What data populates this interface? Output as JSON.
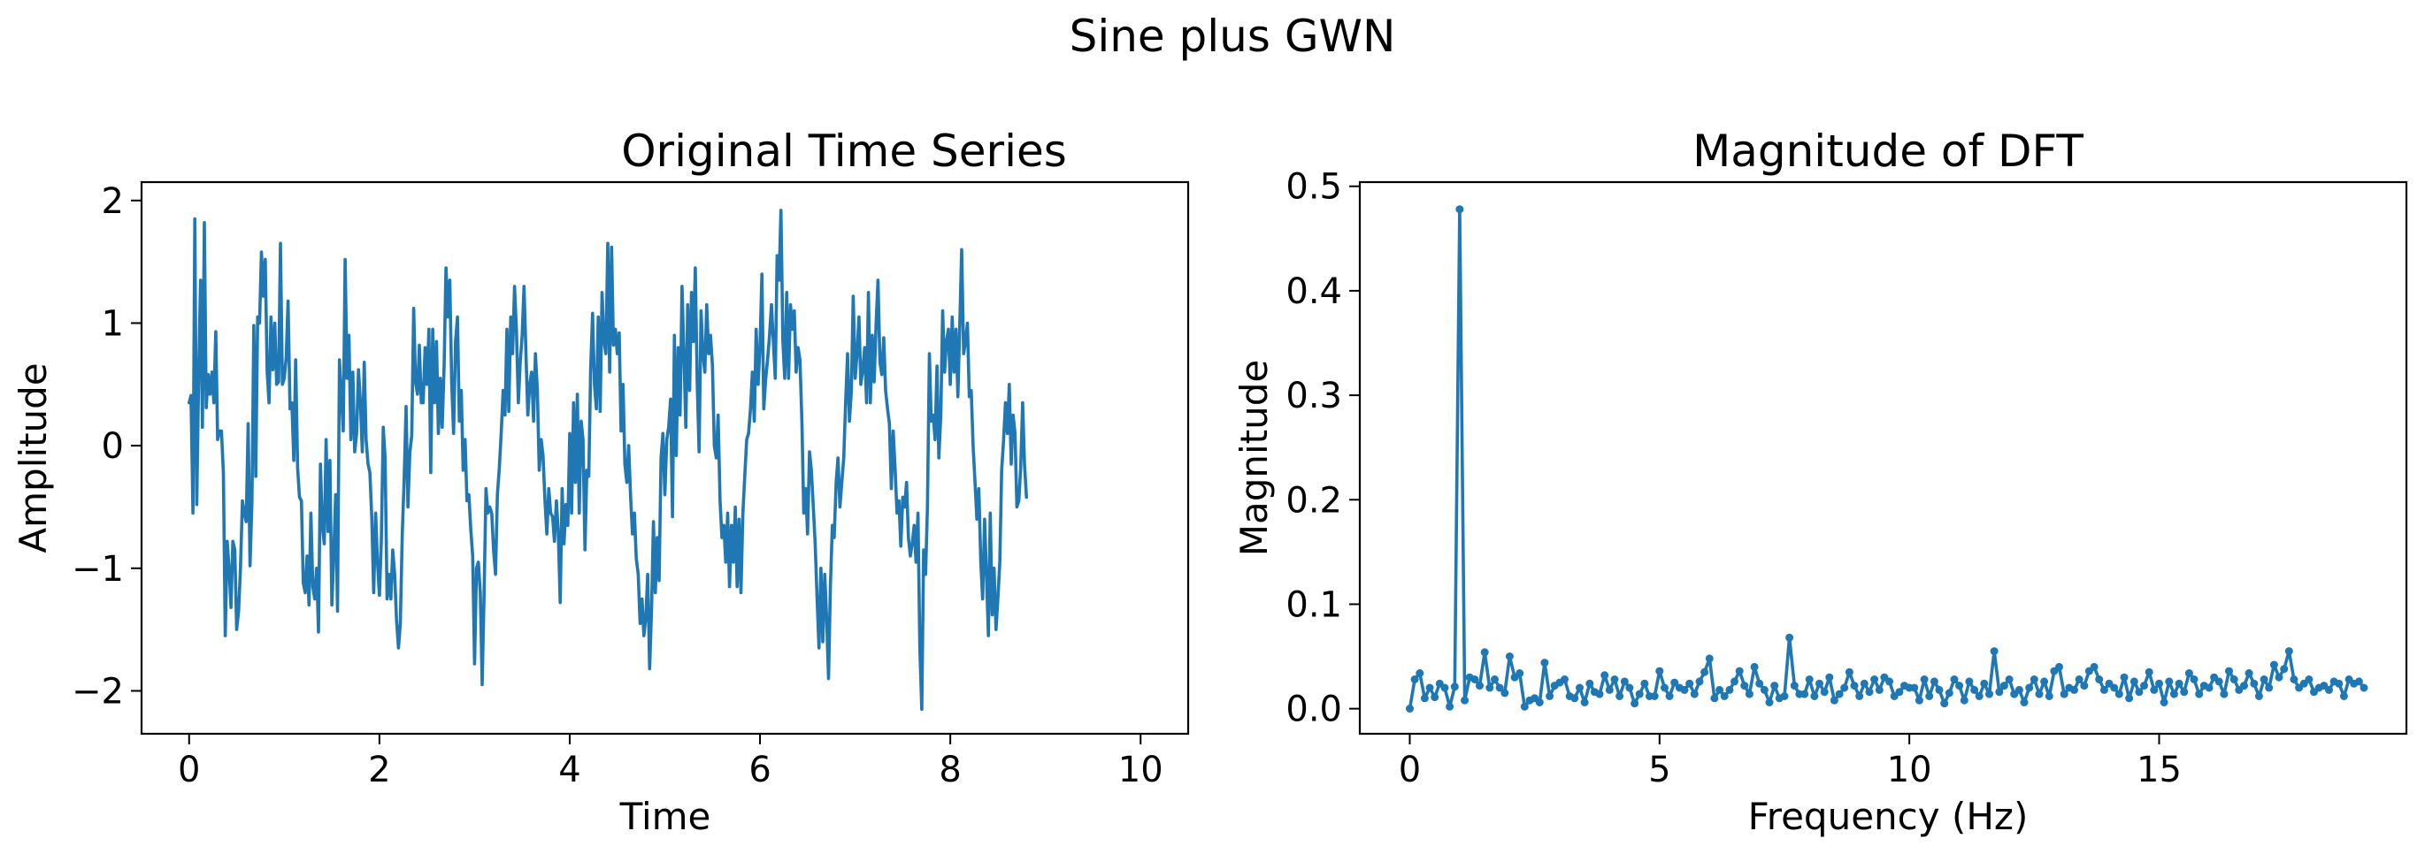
{
  "suptitle": "Sine plus GWN",
  "line_color": "#1f77b4",
  "chart_data": [
    {
      "type": "line",
      "title": "Original Time Series",
      "xlabel": "Time",
      "ylabel": "Amplitude",
      "xlim": [
        -0.5,
        10.5
      ],
      "ylim": [
        -2.35,
        2.15
      ],
      "xticks": [
        0,
        2,
        4,
        6,
        8,
        10
      ],
      "xtick_labels": [
        "0",
        "2",
        "4",
        "6",
        "8",
        "10"
      ],
      "yticks": [
        -2,
        -1,
        0,
        1,
        2
      ],
      "ytick_labels": [
        "−2",
        "−1",
        "0",
        "1",
        "2"
      ],
      "grid": false,
      "series": [
        {
          "x_start": 0,
          "x_step": 0.02,
          "markers": false,
          "values": [
            0.35,
            0.41,
            -0.55,
            1.85,
            -0.48,
            0.55,
            1.35,
            0.15,
            1.82,
            0.31,
            0.58,
            0.42,
            0.6,
            0.35,
            0.93,
            0.05,
            0.12,
            0.12,
            -0.22,
            -1.55,
            -0.78,
            -1.0,
            -1.32,
            -0.78,
            -0.85,
            -1.5,
            -1.35,
            -1.0,
            -0.45,
            -0.55,
            -0.62,
            0.18,
            -0.98,
            -0.45,
            0.98,
            -0.25,
            1.05,
            1.0,
            1.58,
            1.22,
            1.52,
            0.6,
            0.35,
            1.05,
            0.62,
            1.0,
            0.5,
            0.52,
            1.65,
            0.5,
            0.55,
            0.72,
            1.18,
            0.3,
            0.35,
            -0.12,
            0.7,
            -0.18,
            -0.42,
            -0.45,
            -1.12,
            -1.2,
            -0.9,
            -1.3,
            -0.55,
            -1.15,
            -1.25,
            -1.0,
            -1.52,
            -0.15,
            -0.65,
            -0.8,
            0.05,
            -0.7,
            -0.12,
            -1.3,
            -0.9,
            -0.4,
            -1.35,
            0.7,
            0.42,
            0.12,
            1.52,
            0.55,
            0.9,
            0.05,
            0.6,
            -0.05,
            0.1,
            0.62,
            0.35,
            -0.05,
            0.68,
            0.05,
            -0.15,
            -0.22,
            -0.6,
            -1.2,
            -0.55,
            -0.95,
            -1.22,
            -0.78,
            0.15,
            -0.1,
            -1.25,
            -1.05,
            -1.25,
            -0.85,
            -1.05,
            -1.42,
            -1.65,
            -1.45,
            -0.72,
            -0.28,
            0.32,
            -0.5,
            -0.05,
            0.08,
            1.12,
            0.52,
            0.42,
            0.82,
            0.35,
            0.35,
            0.8,
            0.5,
            0.95,
            -0.22,
            0.95,
            0.35,
            0.85,
            0.1,
            0.55,
            0.15,
            0.65,
            1.45,
            1.05,
            1.35,
            0.5,
            0.1,
            0.85,
            1.05,
            0.2,
            0.45,
            -0.2,
            0.05,
            -0.45,
            -0.4,
            -0.68,
            -0.9,
            -1.78,
            -1.0,
            -0.95,
            -1.2,
            -1.95,
            -1.2,
            -0.35,
            -0.55,
            -0.5,
            -0.55,
            -0.85,
            -1.05,
            -0.4,
            -0.18,
            0.1,
            0.45,
            0.25,
            0.95,
            0.28,
            1.05,
            0.75,
            1.3,
            0.95,
            0.35,
            0.68,
            0.9,
            1.3,
            0.75,
            0.25,
            0.5,
            0.6,
            0.2,
            0.75,
            0.45,
            -0.2,
            0.05,
            -0.08,
            -0.45,
            -0.72,
            -0.35,
            -0.55,
            -0.58,
            -0.78,
            -0.45,
            -0.7,
            -1.28,
            -0.35,
            -0.8,
            -0.48,
            -0.65,
            0.1,
            -0.55,
            0.35,
            -0.3,
            0.42,
            -0.55,
            0.2,
            0.05,
            -0.85,
            -0.2,
            -0.25,
            0.62,
            1.08,
            0.5,
            0.3,
            1.05,
            0.28,
            1.25,
            0.85,
            0.75,
            1.65,
            0.6,
            1.62,
            0.82,
            0.95,
            0.75,
            0.92,
            0.12,
            0.5,
            -0.15,
            -0.3,
            0.0,
            -0.42,
            -0.72,
            -0.55,
            -0.92,
            -1.05,
            -1.45,
            -1.25,
            -1.55,
            -1.4,
            -1.05,
            -1.82,
            -1.35,
            -0.62,
            -1.2,
            -0.75,
            -1.1,
            -0.1,
            0.1,
            -0.4,
            0.05,
            0.15,
            0.38,
            -0.58,
            0.9,
            -0.08,
            0.8,
            0.25,
            1.3,
            0.75,
            0.15,
            1.15,
            0.45,
            1.25,
            0.85,
            1.45,
            0.5,
            -0.05,
            1.1,
            0.75,
            0.6,
            1.15,
            0.75,
            0.9,
            0.65,
            0.0,
            -0.1,
            0.25,
            -0.45,
            -0.75,
            -0.65,
            -0.95,
            -0.55,
            -1.15,
            -0.65,
            -0.95,
            -0.5,
            -1.15,
            -0.6,
            -1.2,
            -0.55,
            -0.25,
            0.05,
            0.1,
            0.3,
            0.6,
            0.2,
            0.95,
            0.5,
            0.8,
            1.4,
            0.3,
            0.55,
            0.7,
            0.9,
            1.15,
            0.85,
            0.55,
            1.55,
            1.35,
            1.92,
            0.85,
            0.55,
            1.25,
            0.55,
            1.15,
            0.95,
            1.1,
            0.6,
            0.8,
            0.7,
            0.2,
            -0.55,
            -0.35,
            -0.72,
            -0.05,
            -0.2,
            -0.5,
            -0.8,
            -1.25,
            -1.65,
            -1.0,
            -1.6,
            -1.05,
            -1.4,
            -1.9,
            -1.15,
            -0.65,
            -0.75,
            -0.3,
            -0.1,
            -0.5,
            -0.3,
            -0.1,
            0.35,
            0.75,
            0.2,
            0.45,
            1.22,
            0.55,
            0.75,
            1.05,
            0.5,
            0.62,
            0.8,
            0.35,
            1.25,
            0.35,
            0.9,
            0.52,
            1.0,
            1.35,
            0.68,
            0.58,
            0.88,
            0.45,
            0.3,
            0.18,
            -0.35,
            0.12,
            -0.2,
            -0.55,
            -0.45,
            -0.82,
            -0.42,
            -0.5,
            -0.3,
            -0.75,
            -0.9,
            -0.8,
            -0.65,
            -0.95,
            -0.55,
            -1.65,
            -2.15,
            -0.85,
            -1.05,
            -0.5,
            0.75,
            0.2,
            0.25,
            0.05,
            0.65,
            -0.1,
            0.25,
            1.1,
            0.6,
            0.85,
            0.95,
            0.5,
            1.05,
            0.6,
            0.95,
            0.4,
            1.0,
            1.6,
            0.75,
            0.85,
            1.0,
            0.4,
            0.45,
            0.0,
            -0.3,
            -0.6,
            -0.35,
            -0.95,
            -1.25,
            -0.6,
            -1.05,
            -1.55,
            -0.55,
            -1.38,
            -1.0,
            -1.5,
            -1.25,
            -0.95,
            -0.2,
            0.05,
            0.35,
            0.1,
            0.5,
            -0.15,
            0.25,
            0.1,
            -0.5,
            -0.45,
            -0.18,
            0.35,
            -0.15,
            -0.42
          ]
        }
      ]
    },
    {
      "type": "line",
      "title": "Magnitude of DFT",
      "xlabel": "Frequency (Hz)",
      "ylabel": "Magnitude",
      "xlim": [
        -1.0,
        19.95
      ],
      "ylim": [
        -0.024,
        0.504
      ],
      "xticks": [
        0,
        5,
        10,
        15
      ],
      "xtick_labels": [
        "0",
        "5",
        "10",
        "15"
      ],
      "yticks": [
        0.0,
        0.1,
        0.2,
        0.3,
        0.4,
        0.5
      ],
      "ytick_labels": [
        "0.0",
        "0.1",
        "0.2",
        "0.3",
        "0.4",
        "0.5"
      ],
      "grid": false,
      "series": [
        {
          "x_start": 0,
          "x_step": 0.1,
          "markers": true,
          "values": [
            0.0,
            0.028,
            0.034,
            0.01,
            0.02,
            0.011,
            0.024,
            0.02,
            0.002,
            0.021,
            0.478,
            0.008,
            0.03,
            0.028,
            0.022,
            0.054,
            0.02,
            0.028,
            0.02,
            0.015,
            0.05,
            0.03,
            0.034,
            0.002,
            0.008,
            0.01,
            0.006,
            0.044,
            0.012,
            0.022,
            0.025,
            0.028,
            0.012,
            0.01,
            0.02,
            0.006,
            0.024,
            0.016,
            0.014,
            0.032,
            0.018,
            0.028,
            0.012,
            0.026,
            0.02,
            0.005,
            0.014,
            0.024,
            0.012,
            0.012,
            0.036,
            0.02,
            0.012,
            0.025,
            0.02,
            0.018,
            0.024,
            0.014,
            0.026,
            0.035,
            0.048,
            0.01,
            0.018,
            0.012,
            0.018,
            0.026,
            0.036,
            0.022,
            0.014,
            0.04,
            0.024,
            0.018,
            0.006,
            0.022,
            0.01,
            0.012,
            0.068,
            0.022,
            0.014,
            0.014,
            0.028,
            0.012,
            0.024,
            0.016,
            0.03,
            0.008,
            0.014,
            0.02,
            0.035,
            0.022,
            0.012,
            0.024,
            0.016,
            0.028,
            0.018,
            0.03,
            0.026,
            0.012,
            0.016,
            0.022,
            0.02,
            0.02,
            0.008,
            0.028,
            0.012,
            0.026,
            0.018,
            0.005,
            0.015,
            0.028,
            0.022,
            0.008,
            0.026,
            0.018,
            0.012,
            0.024,
            0.014,
            0.055,
            0.016,
            0.022,
            0.028,
            0.014,
            0.018,
            0.006,
            0.02,
            0.028,
            0.014,
            0.026,
            0.012,
            0.036,
            0.04,
            0.014,
            0.02,
            0.018,
            0.028,
            0.022,
            0.036,
            0.04,
            0.028,
            0.018,
            0.024,
            0.02,
            0.014,
            0.03,
            0.01,
            0.026,
            0.016,
            0.022,
            0.035,
            0.018,
            0.024,
            0.006,
            0.026,
            0.014,
            0.024,
            0.016,
            0.034,
            0.028,
            0.014,
            0.022,
            0.02,
            0.03,
            0.026,
            0.014,
            0.036,
            0.028,
            0.018,
            0.022,
            0.034,
            0.024,
            0.012,
            0.028,
            0.02,
            0.042,
            0.03,
            0.038,
            0.055,
            0.028,
            0.02,
            0.024,
            0.028,
            0.016,
            0.02,
            0.022,
            0.018,
            0.026,
            0.024,
            0.012,
            0.028,
            0.024,
            0.026,
            0.02
          ]
        }
      ]
    }
  ]
}
